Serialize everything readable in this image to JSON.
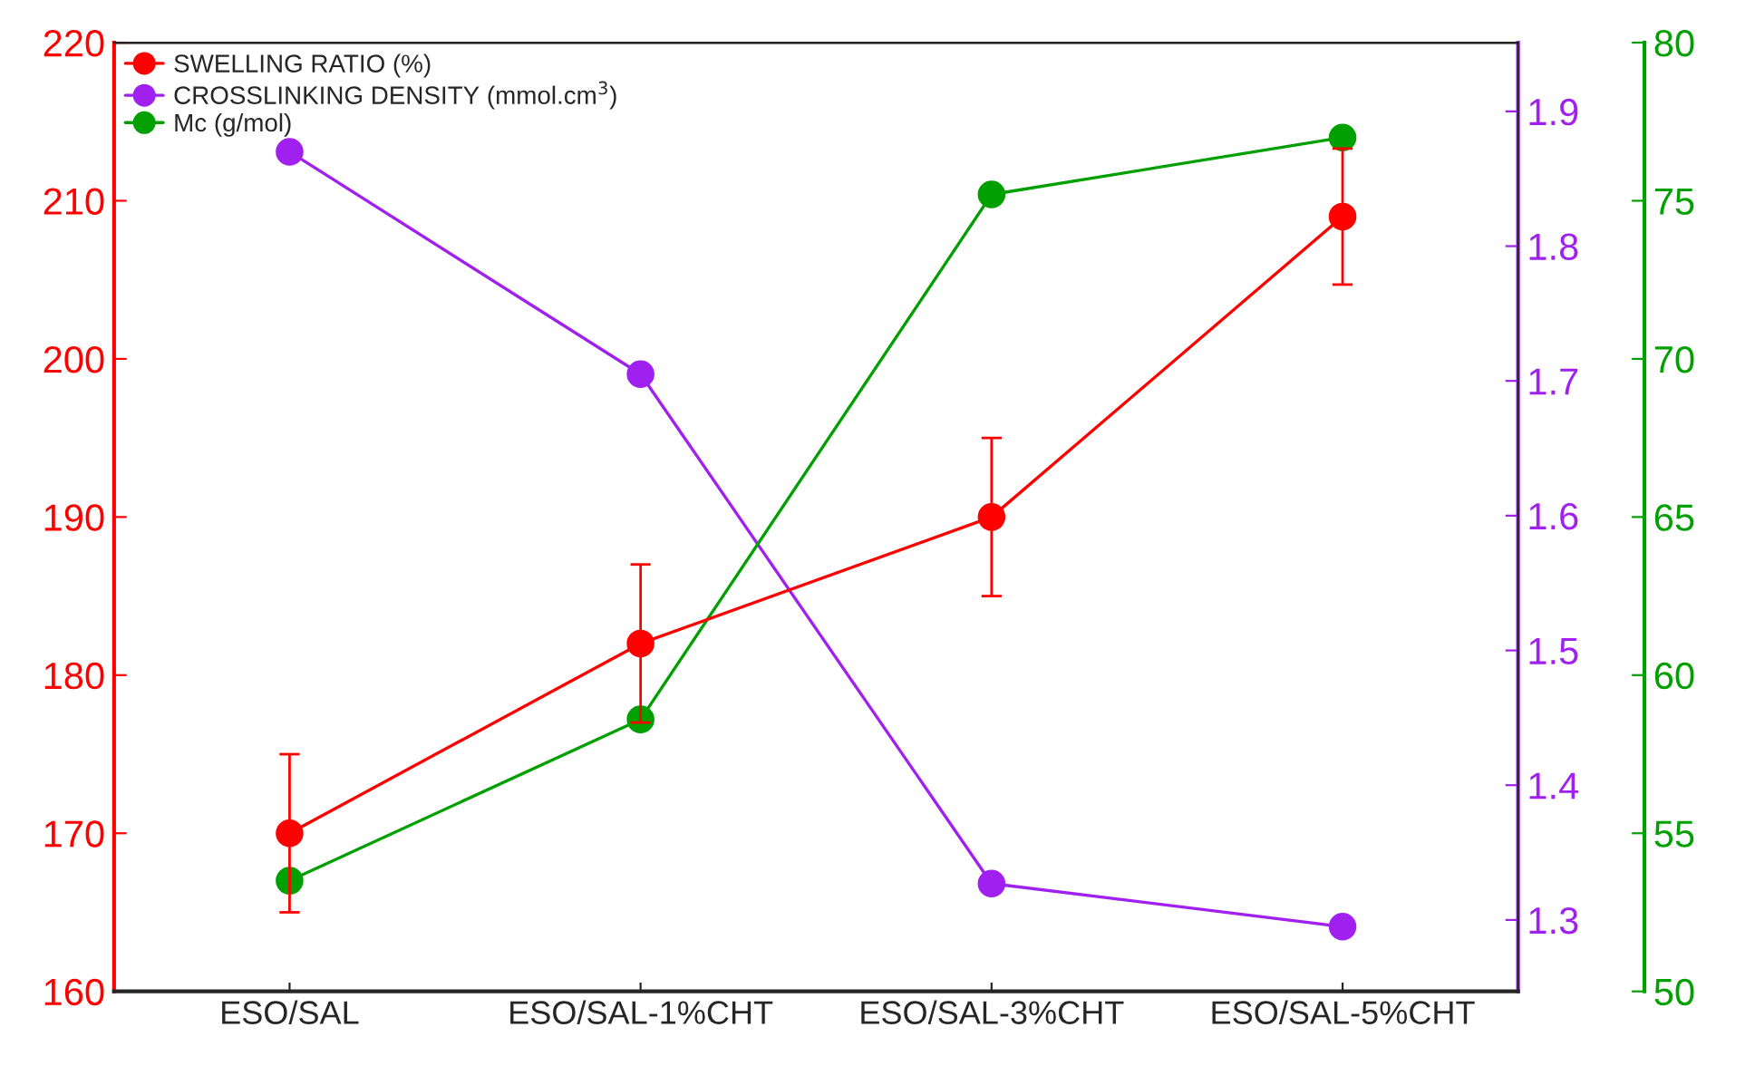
{
  "chart_data": {
    "type": "line",
    "categories": [
      "ESO/SAL",
      "ESO/SAL-1%CHT",
      "ESO/SAL-3%CHT",
      "ESO/SAL-5%CHT"
    ],
    "series": [
      {
        "name": "SWELLING RATIO (%)",
        "color": "#ff0000",
        "values": [
          170,
          182,
          190,
          209
        ],
        "errors": [
          5,
          5,
          5,
          4.3
        ]
      },
      {
        "name": "CROSSLINKING DENSITY (mmol.cm$^{3}$)",
        "color": "#a020f0",
        "values": [
          1.87,
          1.705,
          1.327,
          1.295
        ],
        "axis": "y2"
      },
      {
        "name": "Mc (g/mol)",
        "color": "#00a000",
        "values": [
          53.5,
          58.6,
          75.2,
          77.0
        ],
        "axis": "y3"
      }
    ],
    "ylim": [
      160,
      220
    ],
    "yticks": [
      160,
      170,
      180,
      190,
      200,
      210,
      220
    ],
    "y2lim": [
      1.247,
      1.951
    ],
    "y2ticks": [
      1.3,
      1.4,
      1.5,
      1.6,
      1.7,
      1.8,
      1.9
    ],
    "y3lim": [
      50,
      80
    ],
    "y3ticks": [
      50,
      55,
      60,
      65,
      70,
      75,
      80
    ],
    "marker": "circle",
    "line_style": "solid",
    "legend": "top left",
    "grid": false
  }
}
